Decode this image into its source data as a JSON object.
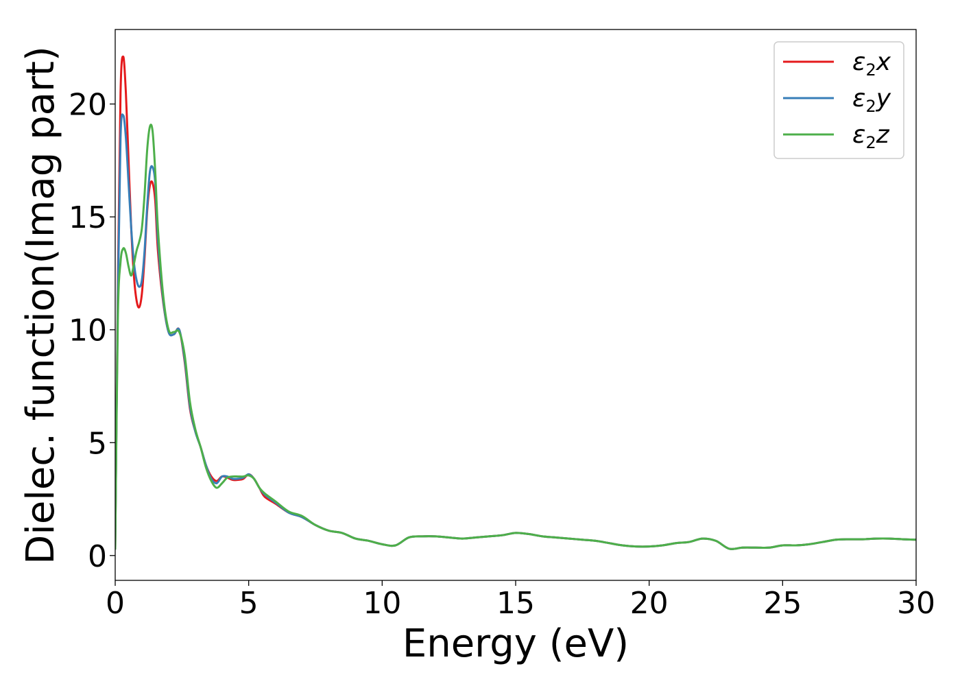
{
  "chart_data": {
    "type": "line",
    "title": "",
    "xlabel": "Energy (eV)",
    "ylabel": "Dielec. function(Imag part)",
    "xlim": [
      0,
      30
    ],
    "ylim": [
      -1.1,
      23.3
    ],
    "xticks": [
      0,
      5,
      10,
      15,
      20,
      25,
      30
    ],
    "yticks": [
      0,
      5,
      10,
      15,
      20
    ],
    "grid": false,
    "legend_position": "top-right",
    "series": [
      {
        "name": "ε2x",
        "legend_main": "ε",
        "legend_sub": "2",
        "legend_suffix": "x",
        "color": "#e41a1c",
        "x": [
          0,
          0.1,
          0.2,
          0.3,
          0.4,
          0.5,
          0.6,
          0.7,
          0.8,
          0.9,
          1.0,
          1.1,
          1.2,
          1.3,
          1.4,
          1.5,
          1.6,
          1.8,
          2.0,
          2.2,
          2.4,
          2.6,
          2.8,
          3.0,
          3.2,
          3.4,
          3.6,
          3.8,
          4.0,
          4.2,
          4.4,
          4.6,
          4.8,
          5.0,
          5.2,
          5.4,
          5.6,
          6.0,
          6.5,
          7.0,
          7.5,
          8.0,
          8.5,
          9.0,
          9.5,
          10.0,
          10.5,
          11.0,
          11.5,
          12.0,
          12.5,
          13.0,
          13.5,
          14.0,
          14.5,
          15.0,
          15.5,
          16.0,
          16.5,
          17.0,
          17.5,
          18.0,
          18.5,
          19.0,
          19.5,
          20.0,
          20.5,
          21.0,
          21.5,
          22.0,
          22.5,
          23.0,
          23.5,
          24.0,
          24.5,
          25.0,
          25.5,
          26.0,
          26.5,
          27.0,
          27.5,
          28.0,
          28.5,
          29.0,
          29.5,
          30.0
        ],
        "y": [
          0.3,
          12.0,
          20.5,
          22.1,
          20.5,
          17.5,
          14.5,
          12.4,
          11.3,
          11.0,
          11.6,
          13.2,
          15.3,
          16.4,
          16.5,
          15.7,
          13.5,
          11.2,
          9.9,
          9.8,
          10.0,
          8.6,
          6.5,
          5.5,
          4.8,
          4.0,
          3.5,
          3.3,
          3.5,
          3.45,
          3.35,
          3.35,
          3.4,
          3.6,
          3.4,
          3.0,
          2.6,
          2.3,
          1.9,
          1.7,
          1.35,
          1.1,
          1.0,
          0.75,
          0.65,
          0.5,
          0.45,
          0.8,
          0.85,
          0.85,
          0.8,
          0.75,
          0.8,
          0.85,
          0.9,
          1.0,
          0.95,
          0.85,
          0.8,
          0.75,
          0.7,
          0.65,
          0.55,
          0.45,
          0.4,
          0.4,
          0.45,
          0.55,
          0.6,
          0.75,
          0.65,
          0.3,
          0.35,
          0.35,
          0.35,
          0.45,
          0.45,
          0.5,
          0.6,
          0.7,
          0.72,
          0.72,
          0.75,
          0.75,
          0.72,
          0.7
        ]
      },
      {
        "name": "ε2y",
        "legend_main": "ε",
        "legend_sub": "2",
        "legend_suffix": "y",
        "color": "#377eb8",
        "x": [
          0,
          0.1,
          0.2,
          0.3,
          0.4,
          0.5,
          0.6,
          0.7,
          0.8,
          0.9,
          1.0,
          1.1,
          1.2,
          1.3,
          1.4,
          1.5,
          1.6,
          1.8,
          2.0,
          2.2,
          2.4,
          2.6,
          2.8,
          3.0,
          3.2,
          3.4,
          3.6,
          3.8,
          4.0,
          4.2,
          4.4,
          4.6,
          4.8,
          5.0,
          5.2,
          5.4,
          5.6,
          6.0,
          6.5,
          7.0,
          7.5,
          8.0,
          8.5,
          9.0,
          9.5,
          10.0,
          10.5,
          11.0,
          11.5,
          12.0,
          12.5,
          13.0,
          13.5,
          14.0,
          14.5,
          15.0,
          15.5,
          16.0,
          16.5,
          17.0,
          17.5,
          18.0,
          18.5,
          19.0,
          19.5,
          20.0,
          20.5,
          21.0,
          21.5,
          22.0,
          22.5,
          23.0,
          23.5,
          24.0,
          24.5,
          25.0,
          25.5,
          26.0,
          26.5,
          27.0,
          27.5,
          28.0,
          28.5,
          29.0,
          29.5,
          30.0
        ],
        "y": [
          0.3,
          11.5,
          18.5,
          19.5,
          18.5,
          16.5,
          14.5,
          13.0,
          12.2,
          11.9,
          12.2,
          13.5,
          15.5,
          17.0,
          17.2,
          16.5,
          14.0,
          11.3,
          9.9,
          9.8,
          10.0,
          8.7,
          6.6,
          5.5,
          4.8,
          4.0,
          3.4,
          3.2,
          3.5,
          3.5,
          3.4,
          3.4,
          3.45,
          3.6,
          3.4,
          3.0,
          2.7,
          2.35,
          1.9,
          1.7,
          1.35,
          1.1,
          1.0,
          0.75,
          0.65,
          0.5,
          0.45,
          0.8,
          0.85,
          0.85,
          0.8,
          0.75,
          0.8,
          0.85,
          0.9,
          1.0,
          0.95,
          0.85,
          0.8,
          0.75,
          0.7,
          0.65,
          0.55,
          0.45,
          0.4,
          0.4,
          0.45,
          0.55,
          0.6,
          0.75,
          0.65,
          0.3,
          0.35,
          0.35,
          0.35,
          0.45,
          0.45,
          0.5,
          0.6,
          0.7,
          0.72,
          0.72,
          0.75,
          0.75,
          0.72,
          0.7
        ]
      },
      {
        "name": "ε2z",
        "legend_main": "ε",
        "legend_sub": "2",
        "legend_suffix": "z",
        "color": "#4daf4a",
        "x": [
          0,
          0.1,
          0.2,
          0.3,
          0.4,
          0.5,
          0.6,
          0.7,
          0.8,
          0.9,
          1.0,
          1.1,
          1.2,
          1.3,
          1.4,
          1.5,
          1.6,
          1.8,
          2.0,
          2.2,
          2.4,
          2.6,
          2.8,
          3.0,
          3.2,
          3.4,
          3.6,
          3.8,
          4.0,
          4.2,
          4.4,
          4.6,
          4.8,
          5.0,
          5.2,
          5.4,
          5.6,
          6.0,
          6.5,
          7.0,
          7.5,
          8.0,
          8.5,
          9.0,
          9.5,
          10.0,
          10.5,
          11.0,
          11.5,
          12.0,
          12.5,
          13.0,
          13.5,
          14.0,
          14.5,
          15.0,
          15.5,
          16.0,
          16.5,
          17.0,
          17.5,
          18.0,
          18.5,
          19.0,
          19.5,
          20.0,
          20.5,
          21.0,
          21.5,
          22.0,
          22.5,
          23.0,
          23.5,
          24.0,
          24.5,
          25.0,
          25.5,
          26.0,
          26.5,
          27.0,
          27.5,
          28.0,
          28.5,
          29.0,
          29.5,
          30.0
        ],
        "y": [
          0.3,
          10.5,
          13.0,
          13.6,
          13.4,
          12.8,
          12.4,
          12.9,
          13.5,
          13.9,
          14.5,
          16.0,
          18.0,
          19.0,
          18.8,
          17.0,
          14.5,
          11.5,
          10.0,
          9.9,
          9.9,
          8.9,
          6.8,
          5.6,
          4.8,
          3.9,
          3.3,
          3.0,
          3.2,
          3.45,
          3.5,
          3.5,
          3.5,
          3.55,
          3.4,
          3.0,
          2.75,
          2.4,
          1.95,
          1.75,
          1.35,
          1.1,
          1.0,
          0.75,
          0.65,
          0.5,
          0.45,
          0.8,
          0.85,
          0.85,
          0.8,
          0.75,
          0.8,
          0.85,
          0.9,
          1.0,
          0.95,
          0.85,
          0.8,
          0.75,
          0.7,
          0.65,
          0.55,
          0.45,
          0.4,
          0.4,
          0.45,
          0.55,
          0.6,
          0.75,
          0.65,
          0.3,
          0.35,
          0.35,
          0.35,
          0.45,
          0.45,
          0.5,
          0.6,
          0.7,
          0.72,
          0.72,
          0.75,
          0.75,
          0.72,
          0.7
        ]
      }
    ]
  }
}
